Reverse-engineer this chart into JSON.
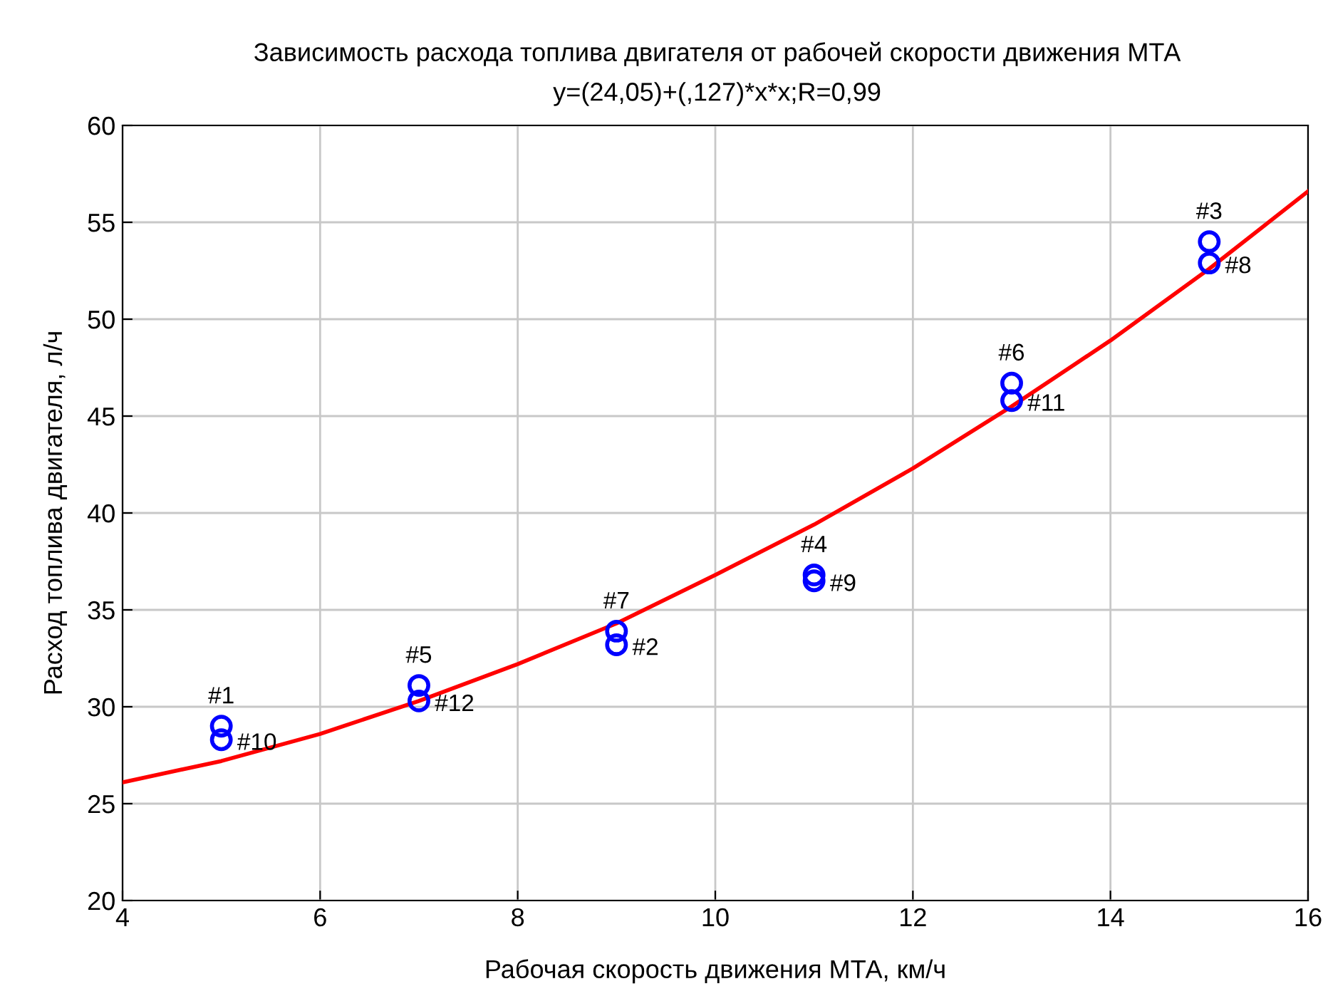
{
  "chart_data": {
    "type": "scatter",
    "title": "Зависимость расхода топлива двигателя от рабочей скорости движения МТА",
    "subtitle": "y=(24,05)+(,127)*x*x;R=0,99",
    "xlabel": "Рабочая скорость движения МТА, км/ч",
    "ylabel": "Расход топлива двигателя, л/ч",
    "series": [
      {
        "color": "#0000ff",
        "marker": "circle",
        "x": [
          5,
          5,
          7,
          7,
          9,
          9,
          11,
          11,
          13,
          13,
          15,
          15
        ],
        "values": [
          29.0,
          28.3,
          31.1,
          30.3,
          33.9,
          33.2,
          36.8,
          36.5,
          46.7,
          45.8,
          54.0,
          52.9
        ]
      },
      {
        "type": "line",
        "color": "#ff0000",
        "line_style": "solid",
        "x": [
          4,
          5,
          6,
          7,
          8,
          9,
          10,
          11,
          12,
          13,
          14,
          15,
          16
        ],
        "values": [
          26.1,
          27.2,
          28.6,
          30.3,
          32.2,
          34.3,
          36.8,
          39.4,
          42.3,
          45.5,
          48.9,
          52.6,
          56.6
        ]
      }
    ],
    "annotations": [
      {
        "text": "#1",
        "x": 5,
        "y": 29.0
      },
      {
        "text": "#10",
        "x": 5,
        "y": 28.3
      },
      {
        "text": "#5",
        "x": 7,
        "y": 31.1
      },
      {
        "text": "#12",
        "x": 7,
        "y": 30.3
      },
      {
        "text": "#7",
        "x": 9,
        "y": 33.9
      },
      {
        "text": "#2",
        "x": 9,
        "y": 33.2
      },
      {
        "text": "#4",
        "x": 11,
        "y": 36.8
      },
      {
        "text": "#9",
        "x": 11,
        "y": 36.5
      },
      {
        "text": "#6",
        "x": 13,
        "y": 46.7
      },
      {
        "text": "#11",
        "x": 13,
        "y": 45.8
      },
      {
        "text": "#3",
        "x": 15,
        "y": 54.0
      },
      {
        "text": "#8",
        "x": 15,
        "y": 52.9
      }
    ],
    "xlim": [
      4,
      16
    ],
    "xticks": [
      4,
      6,
      8,
      10,
      12,
      14,
      16
    ],
    "ylim": [
      20,
      60
    ],
    "yticks": [
      20,
      25,
      30,
      35,
      40,
      45,
      50,
      55,
      60
    ],
    "grid": true,
    "legend": false
  }
}
